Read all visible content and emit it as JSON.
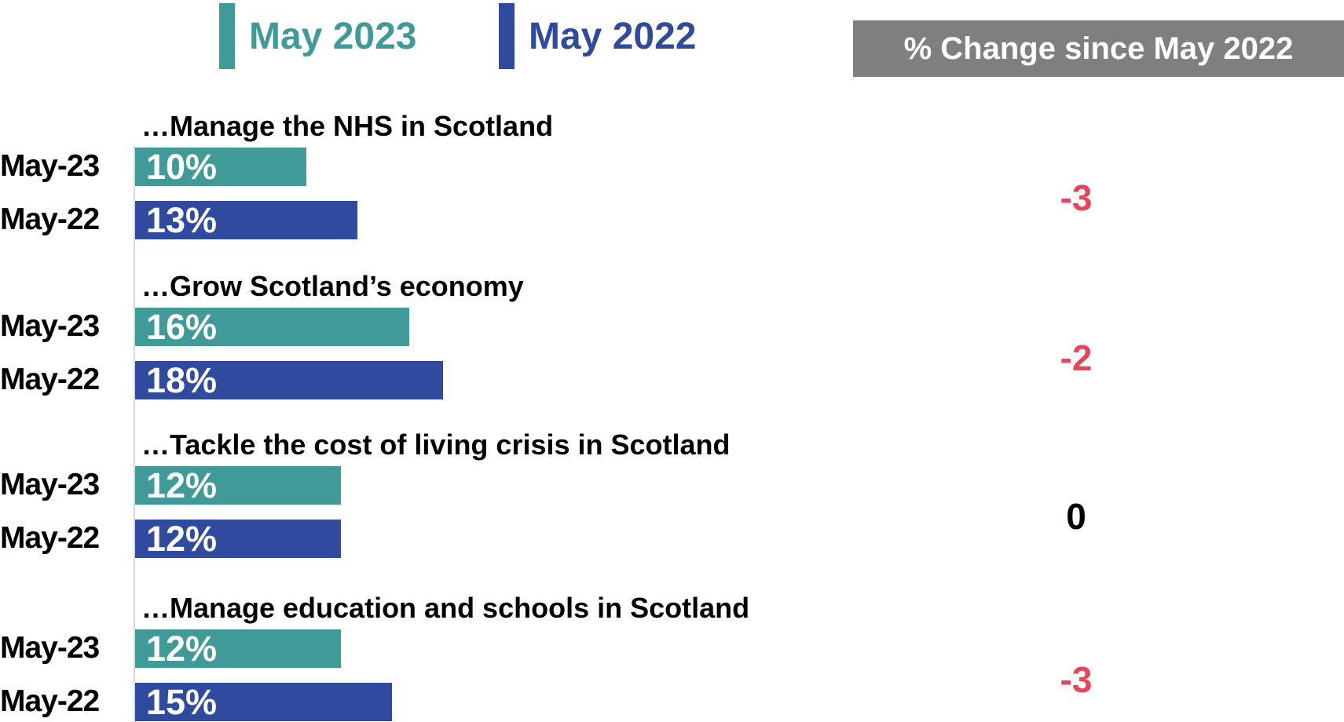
{
  "legend": [
    {
      "label": "May 2023",
      "color": "#409a98"
    },
    {
      "label": "May 2022",
      "color": "#2f4a9e"
    }
  ],
  "change_header": "% Change since May 2022",
  "colors": {
    "negative_change": "#e8445a",
    "zero_change": "#000000",
    "header_bg": "#7f7f7f"
  },
  "chart_data": {
    "type": "bar",
    "orientation": "horizontal",
    "value_unit": "%",
    "series": [
      {
        "name": "May-23",
        "values": [
          10,
          16,
          12,
          12
        ]
      },
      {
        "name": "May-22",
        "values": [
          13,
          18,
          12,
          15
        ]
      }
    ],
    "groups": [
      {
        "title": "…Manage the NHS in Scotland",
        "rows": [
          {
            "label": "May-23",
            "value": 10,
            "display": "10%"
          },
          {
            "label": "May-22",
            "value": 13,
            "display": "13%"
          }
        ],
        "change": "-3"
      },
      {
        "title": "…Grow Scotland’s economy",
        "rows": [
          {
            "label": "May-23",
            "value": 16,
            "display": "16%"
          },
          {
            "label": "May-22",
            "value": 18,
            "display": "18%"
          }
        ],
        "change": "-2"
      },
      {
        "title": "…Tackle the cost of living crisis in Scotland",
        "rows": [
          {
            "label": "May-23",
            "value": 12,
            "display": "12%"
          },
          {
            "label": "May-22",
            "value": 12,
            "display": "12%"
          }
        ],
        "change": "0"
      },
      {
        "title": "…Manage education and schools in Scotland",
        "rows": [
          {
            "label": "May-23",
            "value": 12,
            "display": "12%"
          },
          {
            "label": "May-22",
            "value": 15,
            "display": "15%"
          }
        ],
        "change": "-3"
      }
    ]
  }
}
